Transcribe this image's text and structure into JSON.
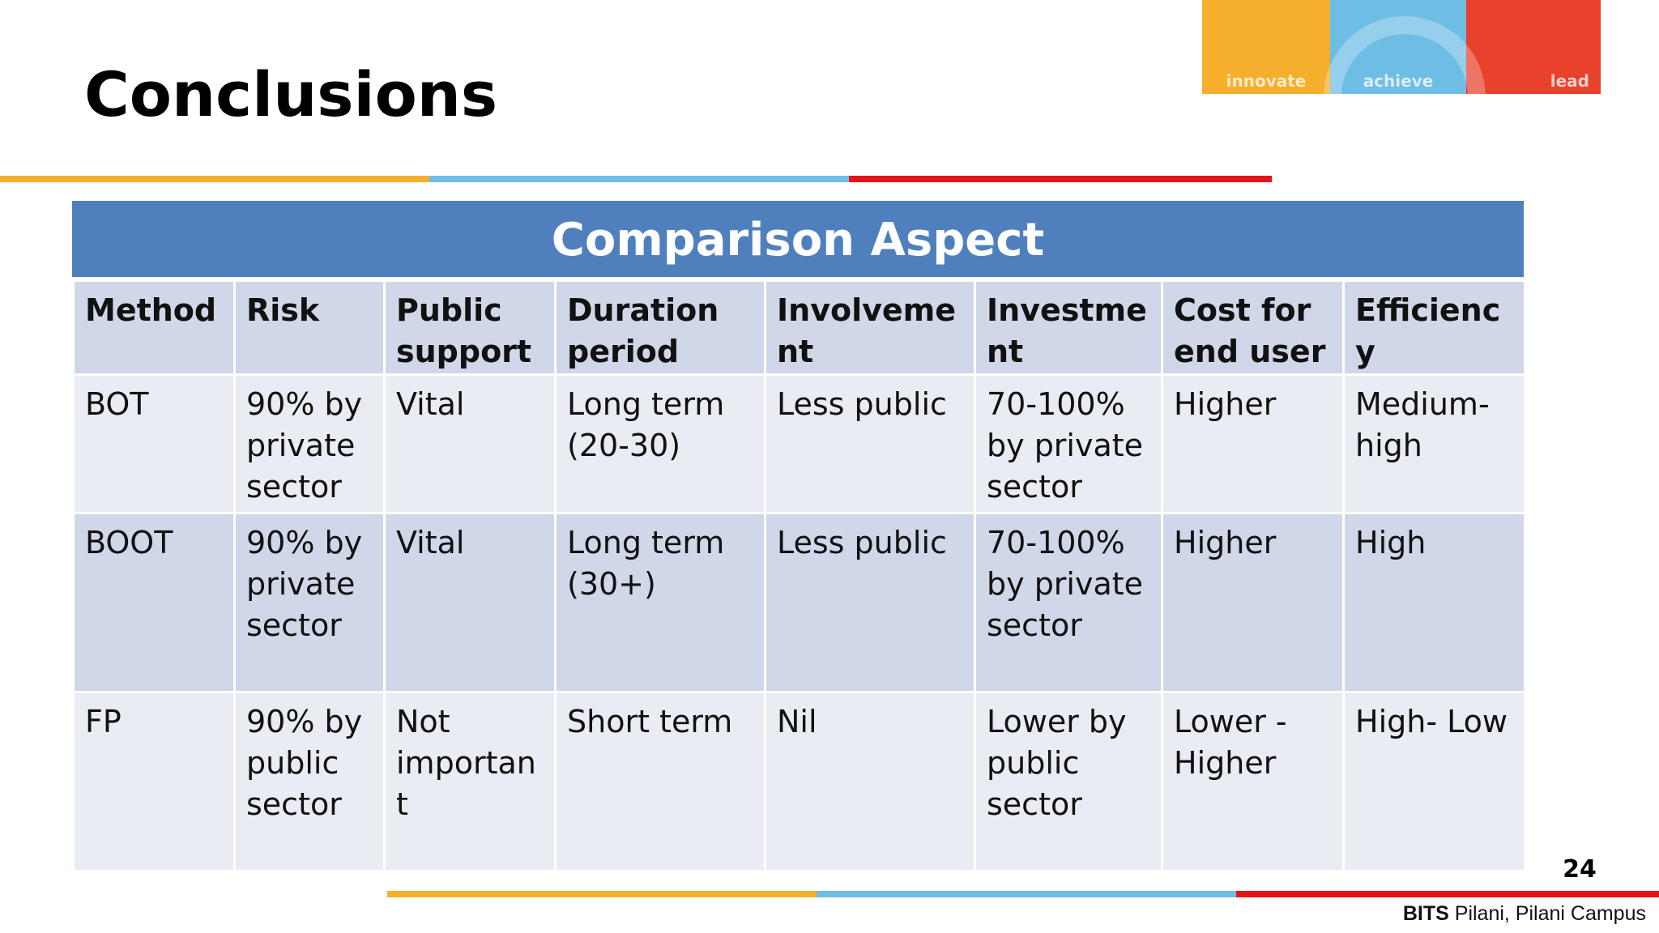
{
  "slide": {
    "title": "Conclusions",
    "page_number": "24",
    "footer_brand": "BITS",
    "footer_rest": " Pilani, Pilani Campus"
  },
  "logo": {
    "words": [
      "innovate",
      "achieve",
      "lead"
    ],
    "colors": [
      "#f6ae2d",
      "#6ebde4",
      "#e8412c"
    ]
  },
  "table": {
    "caption": "Comparison Aspect",
    "headers": [
      "Method",
      "Risk",
      "Public support",
      "Duration period",
      "Involvement",
      "Investment",
      "Cost for end user",
      "Efficiency"
    ],
    "rows": [
      [
        "BOT",
        "90% by private sector",
        "Vital",
        "Long term (20-30)",
        "Less public",
        "70-100% by private sector",
        "Higher",
        "Medium-high"
      ],
      [
        "BOOT",
        "90% by private sector",
        "Vital",
        "Long term (30+)",
        "Less public",
        "70-100% by private sector",
        "Higher",
        "High"
      ],
      [
        "FP",
        "90% by public sector",
        "Not important",
        "Short term",
        "Nil",
        "Lower by public sector",
        "Lower - Higher",
        "High- Low"
      ]
    ],
    "header_color": "#4f80bd"
  }
}
